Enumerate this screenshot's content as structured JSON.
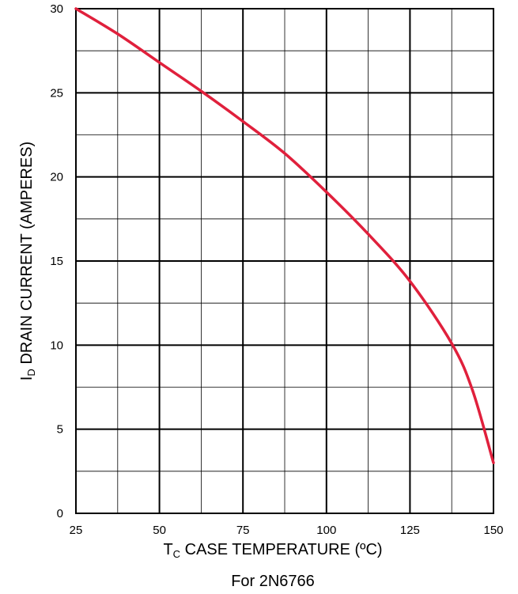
{
  "chart_data": {
    "type": "line",
    "title": "",
    "caption": "For 2N6766",
    "xlabel": {
      "main": "T",
      "sub": "C",
      "rest": " CASE TEMPERATURE (ºC)"
    },
    "ylabel": {
      "main": "I",
      "sub": "D",
      "rest": " DRAIN CURRENT (AMPERES)"
    },
    "xlim": [
      25,
      150
    ],
    "ylim": [
      0,
      30
    ],
    "x_ticks": [
      25,
      50,
      75,
      100,
      125,
      150
    ],
    "y_ticks": [
      0,
      5,
      10,
      15,
      20,
      25,
      30
    ],
    "x_minor_step": 12.5,
    "y_minor_step": 2.5,
    "grid": true,
    "series": [
      {
        "color": "#e0203c",
        "x": [
          25,
          37.5,
          50,
          62.5,
          75,
          87.5,
          100,
          112.5,
          125,
          137.5,
          143.75,
          150
        ],
        "y": [
          30,
          28.5,
          26.8,
          25.1,
          23.3,
          21.4,
          19.1,
          16.6,
          13.8,
          10.1,
          7.3,
          3.0
        ]
      }
    ]
  }
}
